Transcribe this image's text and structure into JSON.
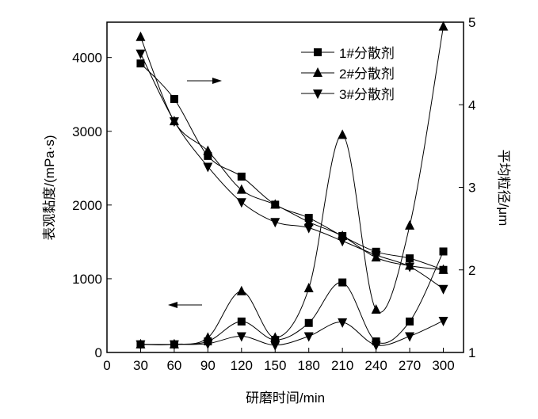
{
  "chart_data": {
    "type": "line",
    "xlabel": "研磨时间/min",
    "ylabel_left": "表观黏度/(mPa·s)",
    "ylabel_right": "平均粒径/μm",
    "xlim": [
      0,
      318
    ],
    "ylim_left": [
      0,
      4480
    ],
    "ylim_right": [
      1,
      5
    ],
    "xticks": [
      0,
      30,
      60,
      90,
      120,
      150,
      180,
      210,
      240,
      270,
      300
    ],
    "yticks_left": [
      0,
      1000,
      2000,
      3000,
      4000
    ],
    "yticks_right": [
      1,
      2,
      3,
      4,
      5
    ],
    "legend_position": "top-center",
    "x": [
      30,
      60,
      90,
      120,
      150,
      180,
      210,
      240,
      270,
      300
    ],
    "series": [
      {
        "name": "1#分散剂",
        "marker": "square",
        "viscosity": [
          110,
          110,
          150,
          420,
          170,
          400,
          950,
          150,
          420,
          1370
        ],
        "particle_size": [
          4.5,
          4.07,
          3.38,
          3.13,
          2.79,
          2.63,
          2.41,
          2.22,
          2.14,
          2.0
        ]
      },
      {
        "name": "2#分散剂",
        "marker": "triangle-up",
        "viscosity": [
          110,
          110,
          200,
          830,
          200,
          870,
          2950,
          580,
          1720,
          4420
        ],
        "particle_size": [
          4.82,
          3.8,
          3.44,
          2.97,
          2.79,
          2.58,
          2.41,
          2.15,
          2.05,
          2.0
        ]
      },
      {
        "name": "3#分散剂",
        "marker": "triangle-down",
        "viscosity": [
          110,
          110,
          120,
          220,
          100,
          220,
          410,
          100,
          220,
          430
        ],
        "particle_size": [
          4.62,
          3.8,
          3.25,
          2.82,
          2.58,
          2.51,
          2.35,
          2.18,
          2.04,
          1.77
        ]
      }
    ],
    "annotations": [
      {
        "text": "→",
        "meaning": "particle size curves read on right axis"
      },
      {
        "text": "←",
        "meaning": "viscosity curves read on left axis"
      }
    ]
  }
}
